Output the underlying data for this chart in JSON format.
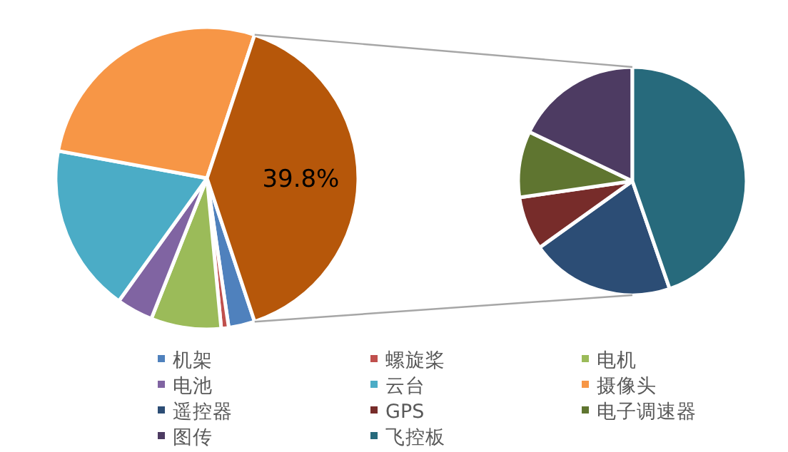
{
  "chart_data": [
    {
      "type": "pie",
      "categories": [
        "机架",
        "螺旋桨",
        "电机",
        "电池",
        "云台",
        "摄像头",
        null
      ],
      "values": [
        2.8,
        0.8,
        7.5,
        3.9,
        18.0,
        27.2,
        39.8
      ],
      "colors": [
        "#4f81bd",
        "#c0504d",
        "#9bbb59",
        "#8064a2",
        "#4bacc6",
        "#f79646",
        "#b6570a"
      ],
      "value_labels": [
        null,
        null,
        null,
        null,
        null,
        null,
        "39.8%"
      ],
      "legend": "bottom"
    },
    {
      "type": "pie",
      "categories": [
        "遥控器",
        "GPS",
        "电子调速器",
        "图传",
        "飞控板"
      ],
      "values": [
        20.4,
        7.6,
        9.4,
        17.9,
        44.7
      ],
      "colors": [
        "#2c4d75",
        "#772c2a",
        "#5f7530",
        "#4d3b62",
        "#276a7c"
      ],
      "legend": "bottom"
    }
  ]
}
